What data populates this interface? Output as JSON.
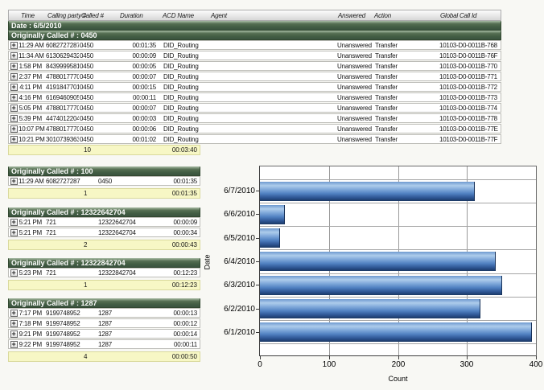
{
  "report": {
    "columns": {
      "time": "Time",
      "calling": "Calling party #",
      "called": "Called #",
      "duration": "Duration",
      "acd": "ACD Name",
      "agent": "Agent",
      "answered": "Answered",
      "action": "Action",
      "gcid": "Global Call Id"
    },
    "date_header": "Date : 6/5/2010",
    "group_main": {
      "header": "Originally Called # : 0450",
      "rows": [
        {
          "time": "11:29 AM",
          "calling": "6082727287",
          "called": "0450",
          "duration": "00:01:35",
          "acd": "DID_Routing",
          "agent": "",
          "answered": "Unanswered",
          "action": "Transfer",
          "gcid": "10103-D0-0011B-768"
        },
        {
          "time": "11:34 AM",
          "calling": "6130629432",
          "called": "0450",
          "duration": "00:00:09",
          "acd": "DID_Routing",
          "agent": "",
          "answered": "Unanswered",
          "action": "Transfer",
          "gcid": "10103-D0-0011B-76F"
        },
        {
          "time": "1:58 PM",
          "calling": "8439999581",
          "called": "0450",
          "duration": "00:00:05",
          "acd": "DID_Routing",
          "agent": "",
          "answered": "Unanswered",
          "action": "Transfer",
          "gcid": "10103-D0-0011B-770"
        },
        {
          "time": "2:37 PM",
          "calling": "4788017770",
          "called": "0450",
          "duration": "00:00:07",
          "acd": "DID_Routing",
          "agent": "",
          "answered": "Unanswered",
          "action": "Transfer",
          "gcid": "10103-D0-0011B-771"
        },
        {
          "time": "4:11 PM",
          "calling": "4191847701",
          "called": "0450",
          "duration": "00:00:15",
          "acd": "DID_Routing",
          "agent": "",
          "answered": "Unanswered",
          "action": "Transfer",
          "gcid": "10103-D0-0011B-772"
        },
        {
          "time": "4:16 PM",
          "calling": "6169460905",
          "called": "0450",
          "duration": "00:00:11",
          "acd": "DID_Routing",
          "agent": "",
          "answered": "Unanswered",
          "action": "Transfer",
          "gcid": "10103-D0-0011B-773"
        },
        {
          "time": "5:05 PM",
          "calling": "4788017770",
          "called": "0450",
          "duration": "00:00:07",
          "acd": "DID_Routing",
          "agent": "",
          "answered": "Unanswered",
          "action": "Transfer",
          "gcid": "10103-D0-0011B-774"
        },
        {
          "time": "5:39 PM",
          "calling": "4474012204",
          "called": "0450",
          "duration": "00:00:03",
          "acd": "DID_Routing",
          "agent": "",
          "answered": "Unanswered",
          "action": "Transfer",
          "gcid": "10103-D0-0011B-778"
        },
        {
          "time": "10:07 PM",
          "calling": "4788017770",
          "called": "0450",
          "duration": "00:00:06",
          "acd": "DID_Routing",
          "agent": "",
          "answered": "Unanswered",
          "action": "Transfer",
          "gcid": "10103-D0-0011B-77E"
        },
        {
          "time": "10:21 PM",
          "calling": "3010739363",
          "called": "0450",
          "duration": "00:01:02",
          "acd": "DID_Routing",
          "agent": "",
          "answered": "Unanswered",
          "action": "Transfer",
          "gcid": "10103-D0-0011B-77F"
        }
      ],
      "summary": {
        "count": "10",
        "total": "00:03:40"
      }
    },
    "groups": [
      {
        "header": "Originally Called # : 100",
        "rows": [
          {
            "time": "11:29 AM",
            "calling": "6082727287",
            "called": "0450",
            "duration": "00:01:35"
          }
        ],
        "summary": {
          "count": "1",
          "total": "00:01:35"
        }
      },
      {
        "header": "Originally Called # : 12322642704",
        "rows": [
          {
            "time": "5:21 PM",
            "calling": "721",
            "called": "12322642704",
            "duration": "00:00:09"
          },
          {
            "time": "5:21 PM",
            "calling": "721",
            "called": "12322642704",
            "duration": "00:00:34"
          }
        ],
        "summary": {
          "count": "2",
          "total": "00:00:43"
        }
      },
      {
        "header": "Originally Called # : 12322842704",
        "rows": [
          {
            "time": "5:23 PM",
            "calling": "721",
            "called": "12322842704",
            "duration": "00:12:23"
          }
        ],
        "summary": {
          "count": "1",
          "total": "00:12:23"
        }
      },
      {
        "header": "Originally Called # : 1287",
        "rows": [
          {
            "time": "7:17 PM",
            "calling": "9199748952",
            "called": "1287",
            "duration": "00:00:13"
          },
          {
            "time": "7:18 PM",
            "calling": "9199748952",
            "called": "1287",
            "duration": "00:00:12"
          },
          {
            "time": "9:21 PM",
            "calling": "9199748952",
            "called": "1287",
            "duration": "00:00:14"
          },
          {
            "time": "9:22 PM",
            "calling": "9199748952",
            "called": "1287",
            "duration": "00:00:11"
          }
        ],
        "summary": {
          "count": "4",
          "total": "00:00:50"
        }
      }
    ]
  },
  "chart_data": {
    "type": "bar",
    "orientation": "horizontal",
    "title": "",
    "categories": [
      "6/7/2010",
      "6/6/2010",
      "6/5/2010",
      "6/4/2010",
      "6/3/2010",
      "6/2/2010",
      "6/1/2010"
    ],
    "values": [
      310,
      35,
      28,
      340,
      350,
      318,
      393
    ],
    "xlabel": "Count",
    "ylabel": "Date",
    "xlim": [
      0,
      400
    ],
    "xticks": [
      "0",
      "100",
      "200",
      "300",
      "400"
    ],
    "grid": true,
    "legend": false,
    "bar_color": "#5a8ac6"
  },
  "colors": {
    "group_header_green": "#43603f",
    "summary_row_yellow": "#f7f7c5",
    "bar_gradient_top": "#aecceb",
    "bar_gradient_bottom": "#1b3863"
  }
}
